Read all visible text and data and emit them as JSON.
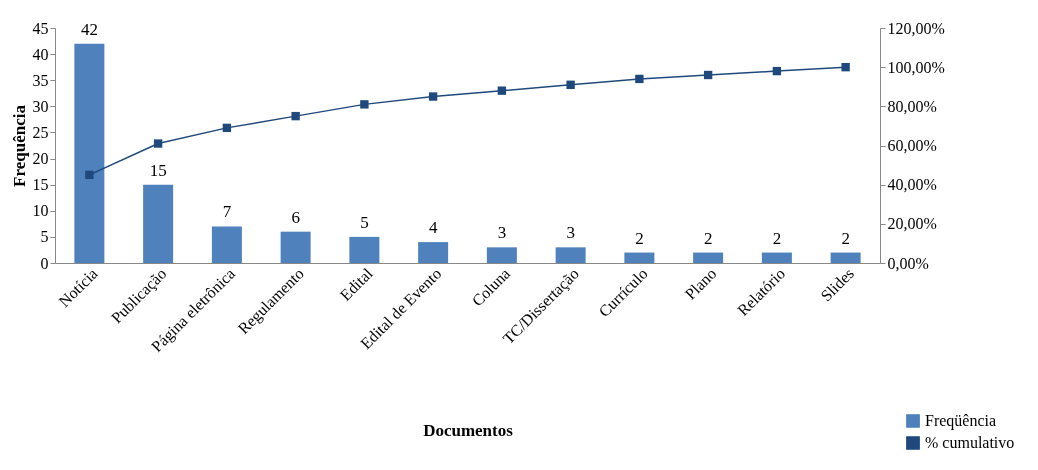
{
  "chart_data": {
    "type": "bar",
    "xlabel": "Documentos",
    "ylabel": "Frequência",
    "categories": [
      "Notícia",
      "Publicação",
      "Página eletrônica",
      "Regulamento",
      "Edital",
      "Edital de Evento",
      "Coluna",
      "TC/Dissertação",
      "Currículo",
      "Plano",
      "Relatório",
      "Slides"
    ],
    "series": [
      {
        "name": "Freqüência",
        "color": "#4f81bd",
        "values": [
          42,
          15,
          7,
          6,
          5,
          4,
          3,
          3,
          2,
          2,
          2,
          2
        ],
        "value_labels": [
          "42",
          "15",
          "7",
          "6",
          "5",
          "4",
          "3",
          "3",
          "2",
          "2",
          "2",
          "2"
        ]
      },
      {
        "name": "% cumulativo",
        "type": "line",
        "axis": "y2",
        "color": "#1f497d",
        "marker": "square",
        "values": [
          45,
          61,
          69,
          75,
          81,
          85,
          88,
          91,
          94,
          96,
          98,
          100
        ]
      }
    ],
    "ylim": [
      0,
      45
    ],
    "yticks": [
      0,
      5,
      10,
      15,
      20,
      25,
      30,
      35,
      40,
      45
    ],
    "y2lim": [
      0,
      120
    ],
    "y2ticks": [
      {
        "value": 0,
        "label": "0,00%"
      },
      {
        "value": 20,
        "label": "20,00%"
      },
      {
        "value": 40,
        "label": "40,00%"
      },
      {
        "value": 60,
        "label": "60,00%"
      },
      {
        "value": 80,
        "label": "80,00%"
      },
      {
        "value": 100,
        "label": "100,00%"
      },
      {
        "value": 120,
        "label": "120,00%"
      }
    ],
    "grid": false,
    "legend": "bottom right"
  }
}
